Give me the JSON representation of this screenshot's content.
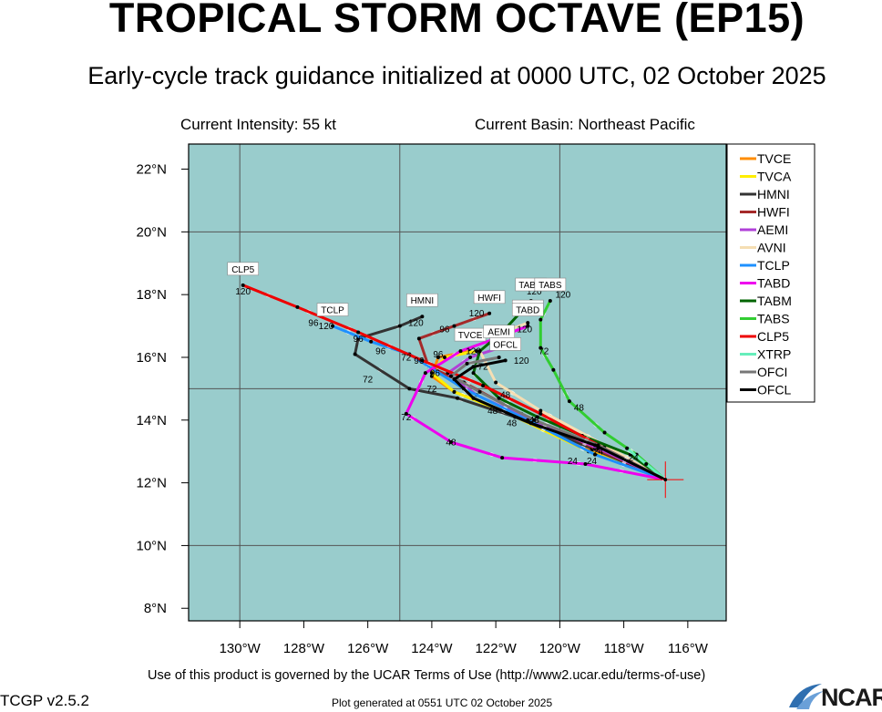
{
  "header": {
    "title": "TROPICAL STORM OCTAVE (EP15)",
    "subtitle": "Early-cycle track guidance initialized at 0000 UTC, 02 October 2025",
    "current_intensity": "Current Intensity: 55 kt",
    "current_basin": "Current Basin: Northeast Pacific"
  },
  "footer": {
    "terms": "Use of this product is governed by the UCAR Terms of Use (http://www2.ucar.edu/terms-of-use)",
    "version": "TCGP v2.5.2",
    "generated": "Plot generated at 0551 UTC   02 October 2025",
    "logo_text": "NCAR"
  },
  "colors": {
    "ocean": "#99cccc",
    "grid": "#555555",
    "storm_marker": "#ff0000"
  },
  "map_data": {
    "type": "track-map",
    "lon_range": [
      -131.6,
      -114.8
    ],
    "lat_range": [
      7.6,
      22.8
    ],
    "x_ticks": [
      {
        "lon": -130,
        "label": "130°W"
      },
      {
        "lon": -128,
        "label": "128°W"
      },
      {
        "lon": -126,
        "label": "126°W"
      },
      {
        "lon": -124,
        "label": "124°W"
      },
      {
        "lon": -122,
        "label": "122°W"
      },
      {
        "lon": -120,
        "label": "120°W"
      },
      {
        "lon": -118,
        "label": "118°W"
      },
      {
        "lon": -116,
        "label": "116°W"
      }
    ],
    "y_ticks": [
      {
        "lat": 8,
        "label": "8°N"
      },
      {
        "lat": 10,
        "label": "10°N"
      },
      {
        "lat": 12,
        "label": "12°N"
      },
      {
        "lat": 14,
        "label": "14°N"
      },
      {
        "lat": 16,
        "label": "16°N"
      },
      {
        "lat": 18,
        "label": "18°N"
      },
      {
        "lat": 20,
        "label": "20°N"
      },
      {
        "lat": 22,
        "label": "22°N"
      }
    ],
    "grid_lons": [
      -130,
      -125,
      -120
    ],
    "grid_lats": [
      10,
      15,
      20
    ],
    "storm_position": {
      "lon": -116.7,
      "lat": 12.1
    },
    "legend": [
      {
        "name": "TVCE",
        "color": "#ff8c00"
      },
      {
        "name": "TVCA",
        "color": "#ffee00"
      },
      {
        "name": "HMNI",
        "color": "#333333"
      },
      {
        "name": "HWFI",
        "color": "#a52a2a"
      },
      {
        "name": "AEMI",
        "color": "#b040d8"
      },
      {
        "name": "AVNI",
        "color": "#f5deb3"
      },
      {
        "name": "TCLP",
        "color": "#1e90ff"
      },
      {
        "name": "TABD",
        "color": "#ee00ee"
      },
      {
        "name": "TABM",
        "color": "#006400"
      },
      {
        "name": "TABS",
        "color": "#32cd32"
      },
      {
        "name": "CLP5",
        "color": "#ee0000"
      },
      {
        "name": "XTRP",
        "color": "#66eebb"
      },
      {
        "name": "OFCI",
        "color": "#777777"
      },
      {
        "name": "OFCL",
        "color": "#000000"
      }
    ],
    "tracks": [
      {
        "name": "TVCE",
        "color": "#ff8c00",
        "label": "TVCE",
        "points": [
          [
            -116.7,
            12.1
          ],
          [
            -119.0,
            13.0
          ],
          [
            -121.5,
            14.2
          ],
          [
            -123.3,
            14.9
          ],
          [
            -124.0,
            15.4
          ],
          [
            -123.8,
            16.0
          ],
          [
            -122.8,
            16.2
          ]
        ]
      },
      {
        "name": "TVCA",
        "color": "#ffee00",
        "label": "",
        "points": [
          [
            -116.7,
            12.1
          ],
          [
            -119.1,
            13.0
          ],
          [
            -121.6,
            14.2
          ],
          [
            -123.3,
            14.9
          ],
          [
            -124.0,
            15.5
          ],
          [
            -123.6,
            16.0
          ],
          [
            -122.6,
            16.2
          ]
        ]
      },
      {
        "name": "HMNI",
        "color": "#333333",
        "label": "HMNI",
        "points": [
          [
            -116.7,
            12.1
          ],
          [
            -119.0,
            13.1
          ],
          [
            -121.4,
            14.1
          ],
          [
            -123.2,
            14.7
          ],
          [
            -124.7,
            15.0
          ],
          [
            -126.4,
            16.1
          ],
          [
            -126.3,
            16.6
          ],
          [
            -125.0,
            17.0
          ],
          [
            -124.3,
            17.3
          ]
        ]
      },
      {
        "name": "HWFI",
        "color": "#a52a2a",
        "label": "HWFI",
        "points": [
          [
            -116.7,
            12.1
          ],
          [
            -118.9,
            13.1
          ],
          [
            -121.2,
            14.2
          ],
          [
            -123.0,
            15.2
          ],
          [
            -124.1,
            15.7
          ],
          [
            -124.4,
            16.6
          ],
          [
            -123.3,
            17.0
          ],
          [
            -122.2,
            17.4
          ]
        ]
      },
      {
        "name": "AEMI",
        "color": "#b040d8",
        "label": "AEMI",
        "points": [
          [
            -116.7,
            12.1
          ],
          [
            -118.8,
            13.1
          ],
          [
            -120.9,
            14.0
          ],
          [
            -122.6,
            14.8
          ],
          [
            -123.5,
            15.5
          ],
          [
            -122.8,
            16.0
          ],
          [
            -121.9,
            16.3
          ]
        ]
      },
      {
        "name": "AVNI",
        "color": "#f5deb3",
        "label": "AVNI",
        "points": [
          [
            -116.7,
            12.1
          ],
          [
            -118.6,
            13.2
          ],
          [
            -120.6,
            14.3
          ],
          [
            -122.0,
            15.2
          ],
          [
            -122.5,
            16.2
          ],
          [
            -121.8,
            16.8
          ],
          [
            -121.0,
            17.1
          ]
        ]
      },
      {
        "name": "TCLP",
        "color": "#1e90ff",
        "label": "TCLP",
        "points": [
          [
            -116.7,
            12.1
          ],
          [
            -118.9,
            12.9
          ],
          [
            -121.0,
            14.0
          ],
          [
            -123.0,
            15.0
          ],
          [
            -124.7,
            16.1
          ],
          [
            -125.9,
            16.5
          ],
          [
            -127.1,
            17.0
          ]
        ]
      },
      {
        "name": "TABD",
        "color": "#ee00ee",
        "label": "TABD",
        "points": [
          [
            -116.7,
            12.1
          ],
          [
            -119.2,
            12.6
          ],
          [
            -121.8,
            12.8
          ],
          [
            -123.4,
            13.3
          ],
          [
            -124.8,
            14.2
          ],
          [
            -124.2,
            15.5
          ],
          [
            -123.1,
            16.2
          ],
          [
            -122.0,
            16.6
          ],
          [
            -121.0,
            17.0
          ]
        ]
      },
      {
        "name": "TABM",
        "color": "#006400",
        "label": "TABM",
        "points": [
          [
            -116.7,
            12.1
          ],
          [
            -117.8,
            12.9
          ],
          [
            -119.3,
            13.5
          ],
          [
            -120.7,
            14.1
          ],
          [
            -121.9,
            14.7
          ],
          [
            -122.7,
            15.5
          ],
          [
            -122.5,
            16.2
          ],
          [
            -121.8,
            16.8
          ],
          [
            -120.9,
            17.8
          ]
        ]
      },
      {
        "name": "TABS",
        "color": "#32cd32",
        "label": "TABS",
        "points": [
          [
            -116.7,
            12.1
          ],
          [
            -117.6,
            12.9
          ],
          [
            -118.6,
            13.6
          ],
          [
            -119.7,
            14.6
          ],
          [
            -120.2,
            15.6
          ],
          [
            -120.6,
            16.3
          ],
          [
            -120.6,
            17.2
          ],
          [
            -120.3,
            17.8
          ]
        ]
      },
      {
        "name": "CLP5",
        "color": "#ee0000",
        "label": "CLP5",
        "points": [
          [
            -116.7,
            12.1
          ],
          [
            -118.6,
            13.1
          ],
          [
            -120.6,
            14.2
          ],
          [
            -122.4,
            15.1
          ],
          [
            -124.3,
            15.9
          ],
          [
            -126.3,
            16.8
          ],
          [
            -128.2,
            17.6
          ],
          [
            -129.9,
            18.3
          ]
        ]
      },
      {
        "name": "XTRP",
        "color": "#66eebb",
        "label": "",
        "points": [
          [
            -116.7,
            12.1
          ],
          [
            -117.3,
            12.6
          ],
          [
            -117.9,
            13.1
          ]
        ]
      },
      {
        "name": "OFCI",
        "color": "#777777",
        "label": "",
        "points": [
          [
            -116.7,
            12.1
          ],
          [
            -118.8,
            13.2
          ],
          [
            -120.8,
            14.0
          ],
          [
            -122.5,
            14.9
          ],
          [
            -123.4,
            15.4
          ],
          [
            -122.9,
            15.8
          ],
          [
            -121.9,
            16.0
          ]
        ]
      },
      {
        "name": "OFCL",
        "color": "#000000",
        "label": "OFCL",
        "points": [
          [
            -116.7,
            12.1
          ],
          [
            -118.9,
            13.2
          ],
          [
            -120.9,
            13.9
          ],
          [
            -122.7,
            14.7
          ],
          [
            -123.3,
            15.3
          ],
          [
            -122.7,
            15.7
          ],
          [
            -121.7,
            15.9
          ]
        ]
      }
    ],
    "hour_labels": [
      {
        "lon": -119.6,
        "lat": 12.6,
        "text": "24"
      },
      {
        "lon": -117.7,
        "lat": 12.7,
        "text": "24"
      },
      {
        "lon": -119.0,
        "lat": 12.6,
        "text": "24"
      },
      {
        "lon": -118.8,
        "lat": 12.9,
        "text": "24"
      },
      {
        "lon": -121.5,
        "lat": 13.8,
        "text": "48"
      },
      {
        "lon": -120.8,
        "lat": 13.9,
        "text": "48"
      },
      {
        "lon": -122.1,
        "lat": 14.2,
        "text": "48"
      },
      {
        "lon": -123.4,
        "lat": 13.2,
        "text": "48"
      },
      {
        "lon": -119.4,
        "lat": 14.3,
        "text": "48"
      },
      {
        "lon": -121.7,
        "lat": 14.7,
        "text": "48"
      },
      {
        "lon": -124.0,
        "lat": 14.9,
        "text": "72"
      },
      {
        "lon": -124.8,
        "lat": 14.0,
        "text": "72"
      },
      {
        "lon": -126.0,
        "lat": 15.2,
        "text": "72"
      },
      {
        "lon": -124.8,
        "lat": 15.9,
        "text": "72"
      },
      {
        "lon": -122.4,
        "lat": 15.6,
        "text": "72"
      },
      {
        "lon": -120.5,
        "lat": 16.1,
        "text": "72"
      },
      {
        "lon": -126.3,
        "lat": 16.5,
        "text": "96"
      },
      {
        "lon": -125.6,
        "lat": 16.1,
        "text": "96"
      },
      {
        "lon": -123.6,
        "lat": 16.8,
        "text": "96"
      },
      {
        "lon": -123.8,
        "lat": 16.0,
        "text": "96"
      },
      {
        "lon": -122.5,
        "lat": 16.7,
        "text": "96"
      },
      {
        "lon": -123.9,
        "lat": 15.4,
        "text": "96"
      },
      {
        "lon": -124.4,
        "lat": 15.8,
        "text": "96"
      },
      {
        "lon": -127.7,
        "lat": 17.0,
        "text": "96"
      },
      {
        "lon": -129.9,
        "lat": 18.0,
        "text": "120"
      },
      {
        "lon": -127.3,
        "lat": 16.9,
        "text": "120"
      },
      {
        "lon": -124.5,
        "lat": 17.0,
        "text": "120"
      },
      {
        "lon": -122.6,
        "lat": 17.3,
        "text": "120"
      },
      {
        "lon": -122.0,
        "lat": 16.7,
        "text": "120"
      },
      {
        "lon": -121.1,
        "lat": 16.8,
        "text": "120"
      },
      {
        "lon": -120.8,
        "lat": 18.0,
        "text": "120"
      },
      {
        "lon": -119.9,
        "lat": 17.9,
        "text": "120"
      },
      {
        "lon": -122.7,
        "lat": 16.1,
        "text": "120"
      },
      {
        "lon": -121.2,
        "lat": 15.8,
        "text": "120"
      }
    ]
  }
}
